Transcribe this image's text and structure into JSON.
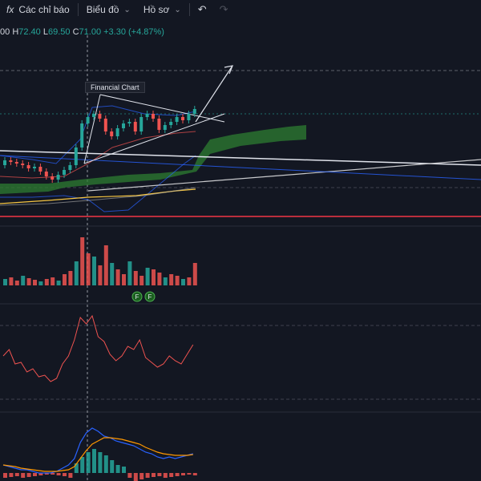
{
  "toolbar": {
    "fx_icon": "fx-icon",
    "indicators_label": "Các chỉ báo",
    "chart_label": "Biểu đồ",
    "profile_label": "Hồ sơ",
    "undo_icon": "undo-icon",
    "redo_icon": "redo-icon"
  },
  "ohlc": {
    "open_suffix": "00",
    "high_prefix": "H",
    "high": "72.40",
    "low_prefix": "L",
    "low": "69.50",
    "close_prefix": "C",
    "close": "71.00",
    "change": "+3.30 (+4.87%)"
  },
  "annotation": {
    "title": "Financial Chart"
  },
  "volume_markers": [
    "F",
    "F"
  ],
  "colors": {
    "background": "#131722",
    "up": "#26a69a",
    "down": "#ef5350",
    "cloud": "#2e7d32",
    "pink_line": "#f23645",
    "trend": "#ffffff"
  },
  "chart_data": {
    "type": "line",
    "candles_close": [
      71.0
    ],
    "title": ""
  }
}
